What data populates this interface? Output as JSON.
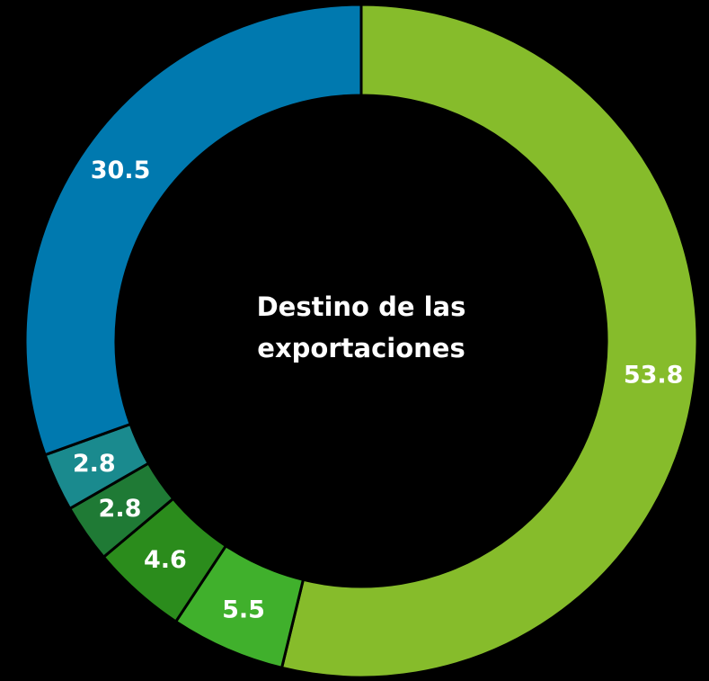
{
  "chart_data": {
    "type": "pie",
    "title": "Destino de las exportaciones",
    "values": [
      53.8,
      5.5,
      4.6,
      2.8,
      2.8,
      30.5
    ],
    "colors": [
      "#86bc2b",
      "#40b02c",
      "#2b8c1c",
      "#1f7a35",
      "#1a8a8e",
      "#0079af"
    ],
    "donut": true
  }
}
